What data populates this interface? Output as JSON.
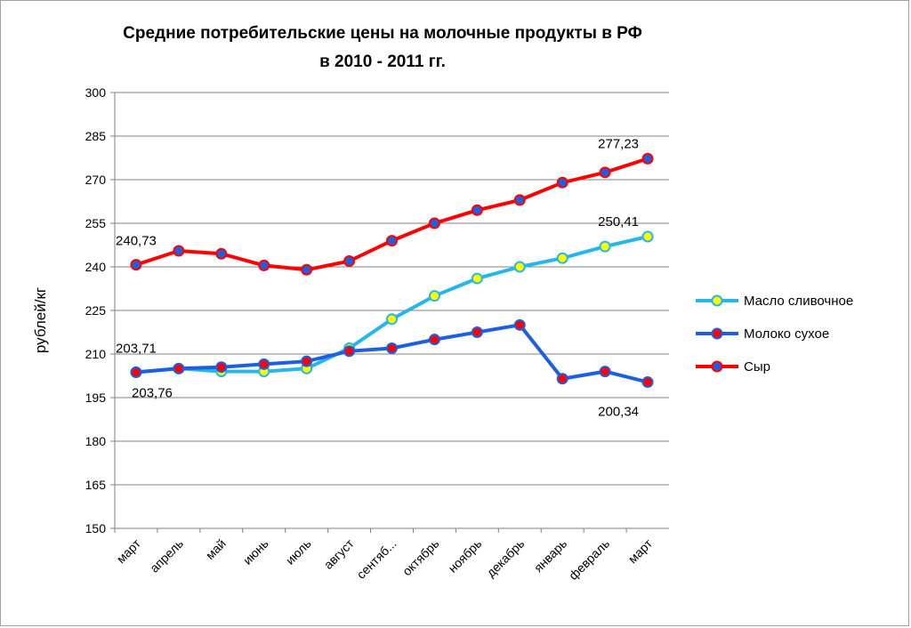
{
  "chart_data": {
    "type": "line",
    "title": [
      "Средние потребительские цены на молочные продукты в РФ",
      "в 2010 - 2011 гг."
    ],
    "ylabel": "рублей/кг",
    "xlabel": "",
    "ylim": [
      150,
      300
    ],
    "yticks": [
      150,
      165,
      180,
      195,
      210,
      225,
      240,
      255,
      270,
      285,
      300
    ],
    "grid": true,
    "legend_position": "right",
    "categories": [
      "март",
      "апрель",
      "май",
      "июнь",
      "июль",
      "август",
      "сентяб...",
      "октябрь",
      "ноябрь",
      "декабрь",
      "январь",
      "февраль",
      "март"
    ],
    "series": [
      {
        "name": "Масло сливочное",
        "line_color": "#27b6ea",
        "marker_fill": "#ffff00",
        "marker_edge": "#27b6ea",
        "values": [
          203.76,
          205.0,
          204.0,
          204.0,
          205.0,
          212.0,
          222.0,
          230.0,
          236.0,
          240.0,
          243.0,
          247.0,
          250.41
        ]
      },
      {
        "name": "Молоко сухое",
        "line_color": "#1e5fe0",
        "marker_fill": "#ff0000",
        "marker_edge": "#1e5fe0",
        "values": [
          203.71,
          205.0,
          205.5,
          206.5,
          207.5,
          211.0,
          212.0,
          215.0,
          217.5,
          220.0,
          201.5,
          204.0,
          200.34
        ]
      },
      {
        "name": "Сыр",
        "line_color": "#ff0000",
        "marker_fill": "#1e5fe0",
        "marker_edge": "#ff0000",
        "values": [
          240.73,
          245.5,
          244.5,
          240.5,
          239.0,
          242.0,
          249.0,
          255.0,
          259.5,
          263.0,
          269.0,
          272.5,
          277.23
        ]
      }
    ],
    "data_labels": [
      {
        "series": 2,
        "index": 0,
        "text": "240,73",
        "pos": "above"
      },
      {
        "series": 2,
        "index": 12,
        "text": "277,23",
        "pos": "above-left"
      },
      {
        "series": 0,
        "index": 12,
        "text": "250,41",
        "pos": "above-left"
      },
      {
        "series": 1,
        "index": 0,
        "text": "203,71",
        "pos": "above"
      },
      {
        "series": 0,
        "index": 0,
        "text": "203,76",
        "pos": "below"
      },
      {
        "series": 1,
        "index": 12,
        "text": "200,34",
        "pos": "below-left"
      }
    ]
  }
}
